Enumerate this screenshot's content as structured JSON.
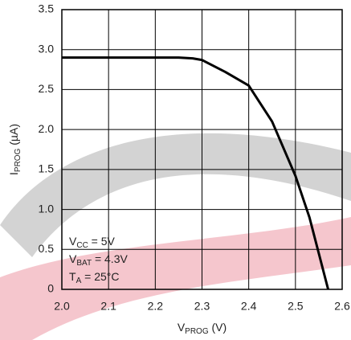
{
  "chart_data": {
    "type": "line",
    "x_label": {
      "main": "V",
      "sub": "PROG",
      "rest": " (V)"
    },
    "y_label": {
      "main": "I",
      "sub": "PROG",
      "rest": " (µA)"
    },
    "annotations": [
      {
        "main": "V",
        "sub": "CC",
        "rest": " = 5V"
      },
      {
        "main": "V",
        "sub": "BAT",
        "rest": " = 4.3V"
      },
      {
        "main": "T",
        "sub": "A",
        "rest": " = 25°C"
      }
    ],
    "x": [
      2.0,
      2.1,
      2.2,
      2.25,
      2.28,
      2.3,
      2.35,
      2.4,
      2.45,
      2.5,
      2.53,
      2.55,
      2.57
    ],
    "series": [
      {
        "color": "#000000",
        "values": [
          2.9,
          2.9,
          2.9,
          2.9,
          2.89,
          2.87,
          2.72,
          2.55,
          2.1,
          1.42,
          0.9,
          0.45,
          0
        ]
      }
    ],
    "xlim": [
      2.0,
      2.6
    ],
    "ylim": [
      0,
      3.5
    ],
    "xticks": [
      {
        "value": 2.0,
        "label": "2.0"
      },
      2.1,
      2.2,
      2.3,
      2.4,
      2.5,
      2.6
    ],
    "yticks": [
      0,
      0.5,
      {
        "value": 1.0,
        "label": "1.0"
      },
      1.5,
      {
        "value": 2.0,
        "label": "2.0"
      },
      2.5,
      {
        "value": 3.0,
        "label": "3.0"
      },
      3.5
    ],
    "grid": true
  }
}
